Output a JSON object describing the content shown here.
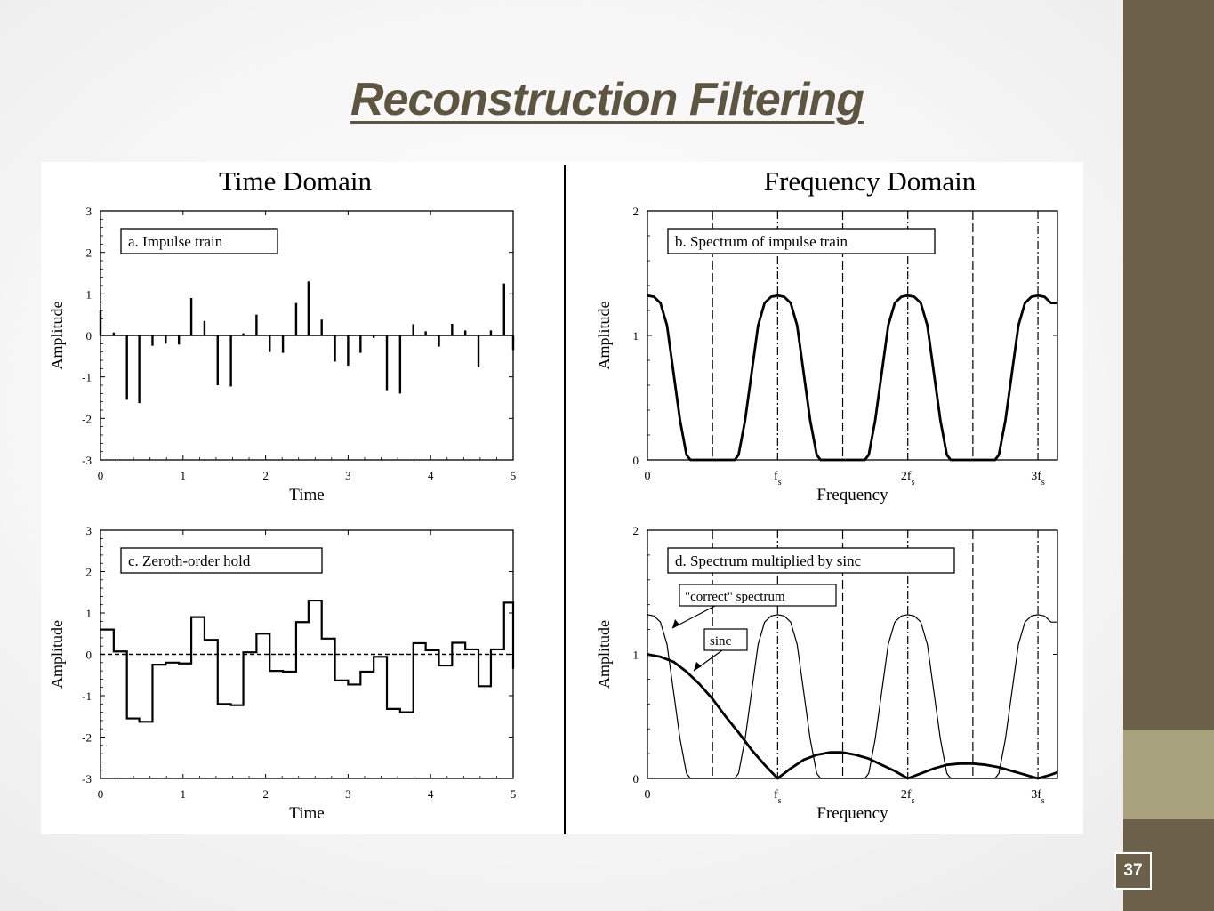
{
  "slide": {
    "title": "Reconstruction Filtering",
    "slide_number": "37",
    "colors": {
      "sidebar": "#6b614b",
      "sidebar_accent": "#a8a37c",
      "title": "#5d5540"
    }
  },
  "figure": {
    "left_heading": "Time Domain",
    "right_heading": "Frequency Domain"
  },
  "chart_data": [
    {
      "type": "bar",
      "panel_label": "a.  Impulse train",
      "xlabel": "Time",
      "ylabel": "Amplitude",
      "xlim": [
        0,
        5
      ],
      "ylim": [
        -3,
        3
      ],
      "xticks": [
        "0",
        "1",
        "2",
        "3",
        "4",
        "5"
      ],
      "yticks": [
        "3",
        "2",
        "1",
        "0",
        "-1",
        "-2",
        "-3"
      ],
      "x": [
        0.0,
        0.16,
        0.32,
        0.47,
        0.63,
        0.79,
        0.95,
        1.1,
        1.26,
        1.42,
        1.58,
        1.73,
        1.89,
        2.05,
        2.21,
        2.37,
        2.52,
        2.68,
        2.84,
        3.0,
        3.15,
        3.31,
        3.47,
        3.63,
        3.79,
        3.94,
        4.1,
        4.26,
        4.42,
        4.58,
        4.73,
        4.89,
        5.0
      ],
      "values": [
        0.6,
        0.07,
        -1.55,
        -1.63,
        -0.25,
        -0.2,
        -0.22,
        0.9,
        0.35,
        -1.2,
        -1.23,
        0.05,
        0.5,
        -0.4,
        -0.42,
        0.78,
        1.3,
        0.38,
        -0.63,
        -0.73,
        -0.42,
        -0.06,
        -1.32,
        -1.4,
        0.27,
        0.1,
        -0.27,
        0.28,
        0.12,
        -0.77,
        0.12,
        1.25,
        -0.35
      ]
    },
    {
      "type": "line",
      "panel_label": "c.  Zeroth-order hold",
      "xlabel": "Time",
      "ylabel": "Amplitude",
      "xlim": [
        0,
        5
      ],
      "ylim": [
        -3,
        3
      ],
      "xticks": [
        "0",
        "1",
        "2",
        "3",
        "4",
        "5"
      ],
      "yticks": [
        "3",
        "2",
        "1",
        "0",
        "-1",
        "-2",
        "-3"
      ],
      "step": "post",
      "zero_line": "dashed",
      "x": [
        0.0,
        0.16,
        0.32,
        0.47,
        0.63,
        0.79,
        0.95,
        1.1,
        1.26,
        1.42,
        1.58,
        1.73,
        1.89,
        2.05,
        2.21,
        2.37,
        2.52,
        2.68,
        2.84,
        3.0,
        3.15,
        3.31,
        3.47,
        3.63,
        3.79,
        3.94,
        4.1,
        4.26,
        4.42,
        4.58,
        4.73,
        4.89,
        5.0
      ],
      "values": [
        0.6,
        0.07,
        -1.55,
        -1.63,
        -0.25,
        -0.2,
        -0.22,
        0.9,
        0.35,
        -1.2,
        -1.23,
        0.05,
        0.5,
        -0.4,
        -0.42,
        0.78,
        1.3,
        0.38,
        -0.63,
        -0.73,
        -0.42,
        -0.06,
        -1.32,
        -1.4,
        0.27,
        0.1,
        -0.27,
        0.28,
        0.12,
        -0.77,
        0.12,
        1.25,
        -0.35
      ]
    },
    {
      "type": "line",
      "panel_label": "b.  Spectrum of impulse train",
      "xlabel": "Frequency",
      "ylabel": "Amplitude",
      "xlim": [
        0,
        3.15
      ],
      "ylim": [
        0,
        2
      ],
      "xticks": [
        {
          "value": 0,
          "label": "0"
        },
        {
          "value": 1,
          "label": "f",
          "sub": "s"
        },
        {
          "value": 2,
          "label": "2f",
          "sub": "s"
        },
        {
          "value": 3,
          "label": "3f",
          "sub": "s"
        }
      ],
      "yticks": [
        "2",
        "1",
        "0"
      ],
      "dashed_verticals": [
        0.5,
        1.0,
        1.5,
        2.0,
        2.5,
        3.0
      ],
      "series": [
        {
          "style": "solid-bold",
          "x": [
            0,
            0.05,
            0.1,
            0.15,
            0.2,
            0.25,
            0.3,
            0.33,
            0.67,
            0.7,
            0.75,
            0.8,
            0.85,
            0.9,
            0.95,
            1.0,
            1.05,
            1.1,
            1.15,
            1.2,
            1.25,
            1.3,
            1.33,
            1.67,
            1.7,
            1.75,
            1.8,
            1.85,
            1.9,
            1.95,
            2.0,
            2.05,
            2.1,
            2.15,
            2.2,
            2.25,
            2.3,
            2.33,
            2.67,
            2.7,
            2.75,
            2.8,
            2.85,
            2.9,
            2.95,
            3.0,
            3.05,
            3.1,
            3.15
          ],
          "values": [
            1.32,
            1.31,
            1.26,
            1.08,
            0.7,
            0.32,
            0.04,
            0,
            0,
            0.04,
            0.32,
            0.7,
            1.08,
            1.26,
            1.31,
            1.32,
            1.31,
            1.26,
            1.08,
            0.7,
            0.32,
            0.04,
            0,
            0,
            0.04,
            0.32,
            0.7,
            1.08,
            1.26,
            1.31,
            1.32,
            1.31,
            1.26,
            1.08,
            0.7,
            0.32,
            0.04,
            0,
            0,
            0.04,
            0.32,
            0.7,
            1.08,
            1.26,
            1.31,
            1.32,
            1.31,
            1.26,
            1.26
          ]
        }
      ]
    },
    {
      "type": "line",
      "panel_label": "d.  Spectrum multiplied by sinc",
      "xlabel": "Frequency",
      "ylabel": "Amplitude",
      "xlim": [
        0,
        3.15
      ],
      "ylim": [
        0,
        2
      ],
      "xticks": [
        {
          "value": 0,
          "label": "0"
        },
        {
          "value": 1,
          "label": "f",
          "sub": "s"
        },
        {
          "value": 2,
          "label": "2f",
          "sub": "s"
        },
        {
          "value": 3,
          "label": "3f",
          "sub": "s"
        }
      ],
      "yticks": [
        "2",
        "1",
        "0"
      ],
      "dashed_verticals": [
        0.5,
        1.0,
        1.5,
        2.0,
        2.5,
        3.0
      ],
      "annotations": [
        "\"correct\" spectrum",
        "sinc"
      ],
      "series": [
        {
          "name": "\"correct\" spectrum",
          "style": "thin",
          "x": [
            0,
            0.05,
            0.1,
            0.15,
            0.2,
            0.25,
            0.3,
            0.33,
            0.67,
            0.7,
            0.75,
            0.8,
            0.85,
            0.9,
            0.95,
            1.0,
            1.05,
            1.1,
            1.15,
            1.2,
            1.25,
            1.3,
            1.33,
            1.67,
            1.7,
            1.75,
            1.8,
            1.85,
            1.9,
            1.95,
            2.0,
            2.05,
            2.1,
            2.15,
            2.2,
            2.25,
            2.3,
            2.33,
            2.67,
            2.7,
            2.75,
            2.8,
            2.85,
            2.9,
            2.95,
            3.0,
            3.05,
            3.1,
            3.15
          ],
          "values": [
            1.32,
            1.31,
            1.26,
            1.08,
            0.7,
            0.32,
            0.04,
            0,
            0,
            0.04,
            0.32,
            0.7,
            1.08,
            1.26,
            1.31,
            1.32,
            1.31,
            1.26,
            1.08,
            0.7,
            0.32,
            0.04,
            0,
            0,
            0.04,
            0.32,
            0.7,
            1.08,
            1.26,
            1.31,
            1.32,
            1.31,
            1.26,
            1.08,
            0.7,
            0.32,
            0.04,
            0,
            0,
            0.04,
            0.32,
            0.7,
            1.08,
            1.26,
            1.31,
            1.32,
            1.31,
            1.26,
            1.26
          ]
        },
        {
          "name": "sinc",
          "style": "bold",
          "x": [
            0,
            0.1,
            0.2,
            0.3,
            0.4,
            0.5,
            0.6,
            0.7,
            0.8,
            0.9,
            1.0,
            1.1,
            1.2,
            1.3,
            1.4,
            1.5,
            1.6,
            1.7,
            1.8,
            1.9,
            2.0,
            2.1,
            2.2,
            2.3,
            2.4,
            2.5,
            2.6,
            2.7,
            2.8,
            2.9,
            3.0,
            3.1,
            3.15
          ],
          "values": [
            1.0,
            0.98,
            0.94,
            0.86,
            0.76,
            0.64,
            0.5,
            0.37,
            0.23,
            0.11,
            0.0,
            0.08,
            0.15,
            0.19,
            0.21,
            0.21,
            0.19,
            0.16,
            0.11,
            0.06,
            0.0,
            0.04,
            0.08,
            0.11,
            0.12,
            0.12,
            0.11,
            0.09,
            0.06,
            0.03,
            0.0,
            0.03,
            0.05
          ]
        }
      ]
    }
  ]
}
